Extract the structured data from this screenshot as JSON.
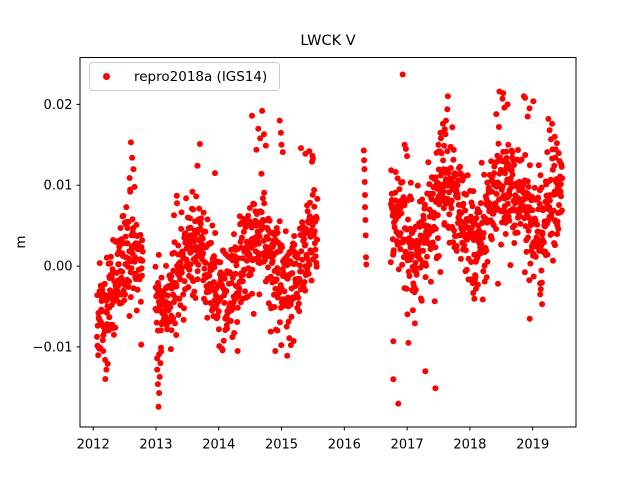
{
  "figure": {
    "background": "#ffffff"
  },
  "chart_data": {
    "type": "scatter",
    "title": "LWCK V",
    "xlabel": "",
    "ylabel": "m",
    "legend": {
      "label": "repro2018a (IGS14)",
      "position": "upper left",
      "marker_color": "#ff0000"
    },
    "marker": {
      "color": "#ff0000",
      "radius": 3
    },
    "axes": {
      "xlim": [
        2011.79,
        2019.69
      ],
      "ylim": [
        -0.0199,
        0.0258
      ],
      "xticks": [
        2012,
        2013,
        2014,
        2015,
        2016,
        2017,
        2018,
        2019
      ],
      "xtick_labels": [
        "2012",
        "2013",
        "2014",
        "2015",
        "2016",
        "2017",
        "2018",
        "2019"
      ],
      "yticks": [
        0.02,
        0.01,
        0.0,
        -0.01
      ],
      "ytick_labels": [
        "0.02",
        "0.01",
        "0.00",
        "−0.01"
      ],
      "grid": false
    },
    "series_model": {
      "seed": 11,
      "step_years": 0.004,
      "t_jitter": 0.002,
      "trend_base": -0.0035,
      "trend_ref_year": 2012,
      "trend_slope_per_year": 0.00145,
      "seasonal_amplitude": 0.0035,
      "seasonal_phase": 0.35,
      "outlier_neg_probability": 0.006,
      "outlier_neg_min": 0.004,
      "outlier_neg_span": 0.009,
      "outlier_pos_probability": 0.01,
      "outlier_pos_min": 0.0025,
      "outlier_pos_span": 0.006,
      "generated_clip": [
        -0.0155,
        0.0215
      ]
    },
    "segments": [
      {
        "start": 2012.06,
        "end": 2012.79,
        "sigma": 0.0028,
        "offset": 0.0005
      },
      {
        "start": 2012.99,
        "end": 2015.57,
        "sigma": 0.0031,
        "offset": 0.0
      },
      {
        "start": 2016.74,
        "end": 2019.47,
        "sigma": 0.0036,
        "offset": 0.0012
      }
    ],
    "notable_points": [
      [
        2012.16,
        -0.0105
      ],
      [
        2012.19,
        -0.0116
      ],
      [
        2012.21,
        -0.0128
      ],
      [
        2012.58,
        0.0109
      ],
      [
        2012.6,
        0.0153
      ],
      [
        2012.62,
        0.0134
      ],
      [
        2012.64,
        0.012
      ],
      [
        2012.66,
        0.0098
      ],
      [
        2013.02,
        -0.0128
      ],
      [
        2013.03,
        -0.0146
      ],
      [
        2013.04,
        -0.0174
      ],
      [
        2013.05,
        -0.0157
      ],
      [
        2013.05,
        -0.0109
      ],
      [
        2013.06,
        -0.0137
      ],
      [
        2013.07,
        -0.012
      ],
      [
        2013.08,
        -0.0101
      ],
      [
        2013.66,
        0.0124
      ],
      [
        2013.7,
        0.0151
      ],
      [
        2013.94,
        0.0115
      ],
      [
        2014.05,
        -0.0102
      ],
      [
        2014.3,
        -0.0105
      ],
      [
        2014.53,
        0.0186
      ],
      [
        2014.6,
        0.0144
      ],
      [
        2014.63,
        0.017
      ],
      [
        2014.66,
        0.0158
      ],
      [
        2014.69,
        0.0192
      ],
      [
        2014.72,
        0.0163
      ],
      [
        2014.75,
        0.0149
      ],
      [
        2014.9,
        -0.0105
      ],
      [
        2014.97,
        0.018
      ],
      [
        2014.99,
        0.0165
      ],
      [
        2015.0,
        0.015
      ],
      [
        2015.02,
        0.0141
      ],
      [
        2015.09,
        -0.0111
      ],
      [
        2015.31,
        0.0146
      ],
      [
        2015.38,
        0.0139
      ],
      [
        2015.44,
        0.0142
      ],
      [
        2015.5,
        0.0133
      ],
      [
        2016.31,
        0.0143
      ],
      [
        2016.315,
        0.0131
      ],
      [
        2016.32,
        0.012
      ],
      [
        2016.325,
        0.0104
      ],
      [
        2016.33,
        0.0088
      ],
      [
        2016.33,
        0.0073
      ],
      [
        2016.335,
        0.0057
      ],
      [
        2016.34,
        0.0038
      ],
      [
        2016.345,
        0.0011
      ],
      [
        2016.35,
        0.0002
      ],
      [
        2016.78,
        -0.0093
      ],
      [
        2016.78,
        -0.014
      ],
      [
        2016.86,
        -0.017
      ],
      [
        2016.93,
        0.0237
      ],
      [
        2016.96,
        0.015
      ],
      [
        2016.98,
        0.0145
      ],
      [
        2017.0,
        0.0136
      ],
      [
        2017.02,
        -0.0095
      ],
      [
        2017.29,
        -0.013
      ],
      [
        2017.45,
        -0.0151
      ],
      [
        2017.47,
        0.014
      ],
      [
        2017.5,
        0.015
      ],
      [
        2017.53,
        0.0165
      ],
      [
        2017.57,
        0.0176
      ],
      [
        2017.61,
        0.0163
      ],
      [
        2017.62,
        0.018
      ],
      [
        2017.64,
        0.0194
      ],
      [
        2017.65,
        0.021
      ],
      [
        2018.42,
        0.0188
      ],
      [
        2018.47,
        0.0216
      ],
      [
        2018.52,
        0.0207
      ],
      [
        2018.53,
        0.0214
      ],
      [
        2018.55,
        0.0196
      ],
      [
        2018.6,
        0.02
      ],
      [
        2018.86,
        0.021
      ],
      [
        2018.88,
        0.0208
      ],
      [
        2018.92,
        0.0185
      ],
      [
        2018.95,
        0.0195
      ],
      [
        2019.01,
        0.0204
      ],
      [
        2019.12,
        -0.0035
      ],
      [
        2019.15,
        -0.0047
      ],
      [
        2019.25,
        0.0182
      ],
      [
        2019.27,
        0.0168
      ],
      [
        2019.31,
        0.0176
      ],
      [
        2019.35,
        0.016
      ]
    ]
  }
}
